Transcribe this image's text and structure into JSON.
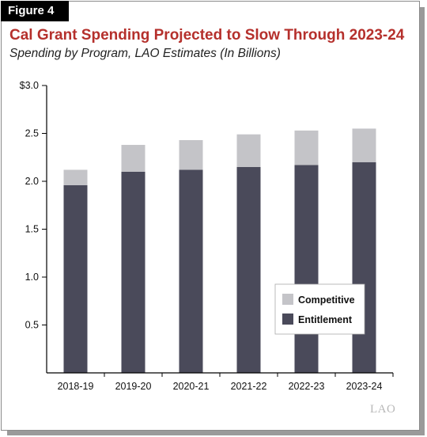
{
  "figure_label": "Figure 4",
  "title": "Cal Grant Spending Projected to Slow Through 2023-24",
  "subtitle": "Spending by Program, LAO Estimates (In Billions)",
  "logo_text": "LAO",
  "colors": {
    "entitlement": "#4a4a5a",
    "competitive": "#c4c4c8",
    "title": "#b5302c"
  },
  "chart_data": {
    "type": "bar",
    "stacked": true,
    "categories": [
      "2018-19",
      "2019-20",
      "2020-21",
      "2021-22",
      "2022-23",
      "2023-24"
    ],
    "series": [
      {
        "name": "Entitlement",
        "values": [
          1.96,
          2.1,
          2.12,
          2.15,
          2.17,
          2.2
        ]
      },
      {
        "name": "Competitive",
        "values": [
          0.16,
          0.28,
          0.31,
          0.34,
          0.36,
          0.35
        ]
      }
    ],
    "ylim": [
      0,
      3.0
    ],
    "yticks": [
      {
        "value": 0.5,
        "label": "0.5"
      },
      {
        "value": 1.0,
        "label": "1.0"
      },
      {
        "value": 1.5,
        "label": "1.5"
      },
      {
        "value": 2.0,
        "label": "2.0"
      },
      {
        "value": 2.5,
        "label": "2.5"
      },
      {
        "value": 3.0,
        "label": "$3.0"
      }
    ],
    "xlabel": "",
    "ylabel": "",
    "grid": false,
    "legend_position": "bottom-right"
  }
}
